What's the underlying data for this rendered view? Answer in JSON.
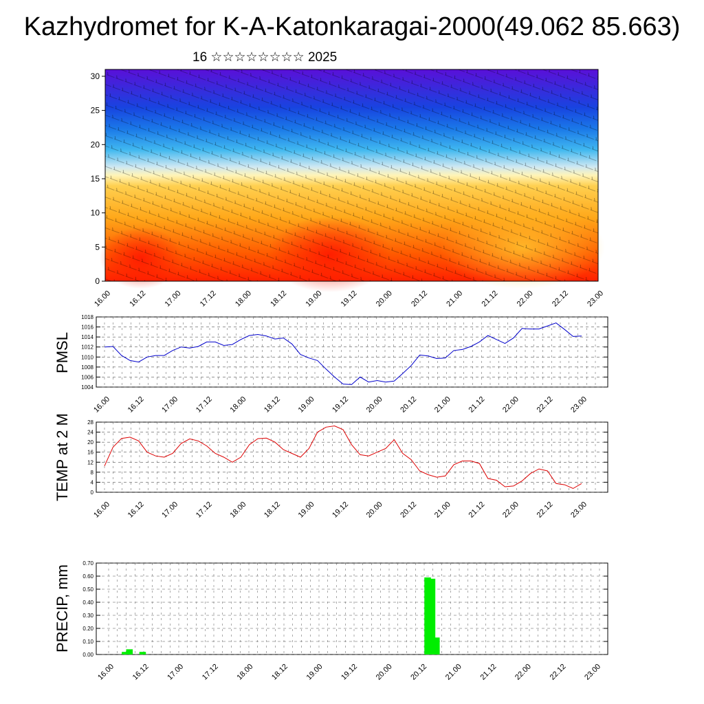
{
  "header": {
    "title": "Kazhydromet for K-A-Katonkaragai-2000(49.062 85.663)",
    "subtitle": "16 ☆☆☆☆☆☆☆☆ 2025"
  },
  "chart_data": [
    {
      "type": "heatmap",
      "name": "cross-section",
      "xlabel": "",
      "ylabel": "",
      "x_tick_labels": [
        "16.00",
        "16.12",
        "17.00",
        "17.12",
        "18.00",
        "18.12",
        "19.00",
        "19.12",
        "20.00",
        "20.12",
        "21.00",
        "21.12",
        "22.00",
        "22.12",
        "23.00"
      ],
      "y_ticks": [
        0,
        5,
        10,
        15,
        20,
        25,
        30
      ],
      "ylim": [
        0,
        31
      ],
      "colors": {
        "low": "#ff2000",
        "mid": "#ffe070",
        "high": "#5a10d8"
      },
      "note_overlay": "wind barbs"
    },
    {
      "type": "line",
      "ylabel": "PMSL",
      "ylim": [
        1004,
        1018
      ],
      "y_ticks": [
        1004,
        1006,
        1008,
        1010,
        1012,
        1014,
        1016,
        1018
      ],
      "x_tick_labels": [
        "16.00",
        "16.12",
        "17.00",
        "17.12",
        "18.00",
        "18.12",
        "19.00",
        "19.12",
        "20.00",
        "20.12",
        "21.00",
        "21.12",
        "22.00",
        "22.12",
        "23.00"
      ],
      "color": "#0000cc",
      "values": [
        1012,
        1012.1,
        1010.3,
        1009.3,
        1009,
        1010,
        1010.3,
        1010.3,
        1011.3,
        1012,
        1011.8,
        1012.1,
        1013,
        1013,
        1012.3,
        1012.5,
        1013.5,
        1014.3,
        1014.5,
        1014.2,
        1013.6,
        1013.8,
        1012.6,
        1010.5,
        1009.8,
        1009.3,
        1007.6,
        1006,
        1004.6,
        1004.5,
        1006,
        1005,
        1005.3,
        1005,
        1005.2,
        1006.7,
        1008.3,
        1010.4,
        1010.2,
        1009.7,
        1009.8,
        1011.3,
        1011.5,
        1012.1,
        1013,
        1014.3,
        1013.5,
        1012.7,
        1013.8,
        1015.7,
        1015.6,
        1015.6,
        1016.2,
        1016.8,
        1015.5,
        1014.1,
        1014.2
      ]
    },
    {
      "type": "line",
      "ylabel": "TEMP at 2 M",
      "ylim": [
        0,
        28
      ],
      "y_ticks": [
        0,
        4,
        8,
        12,
        16,
        20,
        24,
        28
      ],
      "x_tick_labels": [
        "16.00",
        "16.12",
        "17.00",
        "17.12",
        "18.00",
        "18.12",
        "19.00",
        "19.12",
        "20.00",
        "20.12",
        "21.00",
        "21.12",
        "22.00",
        "22.12",
        "23.00"
      ],
      "color": "#dd0000",
      "values": [
        10.5,
        18,
        21.5,
        22,
        20.5,
        16,
        14.5,
        14,
        15.5,
        19.5,
        21.3,
        20.5,
        18.5,
        15.5,
        14,
        12,
        14,
        19,
        21.4,
        21.6,
        20,
        17,
        15.5,
        14,
        17.5,
        24,
        26,
        26.5,
        25,
        19,
        15,
        14.5,
        16,
        17.5,
        21,
        15.5,
        13,
        8.5,
        7,
        6,
        6.5,
        11,
        12.5,
        12.5,
        11.5,
        5.5,
        4.8,
        2.2,
        2.5,
        4.5,
        7.5,
        9.3,
        8.5,
        3.5,
        3,
        1.5,
        3.5
      ]
    },
    {
      "type": "bar",
      "ylabel": "PRECIP, mm",
      "ylim": [
        0,
        0.7
      ],
      "y_ticks": [
        "0.00",
        "0.10",
        "0.20",
        "0.30",
        "0.40",
        "0.50",
        "0.60",
        "0.70"
      ],
      "x_tick_labels": [
        "16.00",
        "16.12",
        "17.00",
        "17.12",
        "18.00",
        "18.12",
        "19.00",
        "19.12",
        "20.00",
        "20.12",
        "21.00",
        "21.12",
        "22.00",
        "22.12",
        "23.00"
      ],
      "color": "#00ee00",
      "values": [
        0,
        0,
        0,
        0.02,
        0.04,
        0,
        0,
        0.02,
        0,
        0,
        0,
        0,
        0,
        0,
        0,
        0,
        0,
        0,
        0,
        0,
        0,
        0,
        0,
        0,
        0,
        0,
        0,
        0,
        0,
        0,
        0,
        0,
        0,
        0,
        0,
        0,
        0,
        0,
        0,
        0,
        0,
        0,
        0,
        0,
        0,
        0,
        0,
        0,
        0,
        0,
        0,
        0,
        0,
        0,
        0,
        0,
        0,
        0,
        0,
        0,
        0,
        0,
        0,
        0,
        0,
        0,
        0,
        0,
        0,
        0,
        0,
        0,
        0.59,
        0.58,
        0.13,
        0,
        0,
        0,
        0,
        0,
        0,
        0,
        0,
        0,
        0,
        0,
        0,
        0,
        0,
        0,
        0,
        0,
        0,
        0,
        0,
        0,
        0,
        0,
        0,
        0,
        0,
        0,
        0,
        0,
        0,
        0,
        0,
        0,
        0,
        0,
        0
      ]
    }
  ]
}
